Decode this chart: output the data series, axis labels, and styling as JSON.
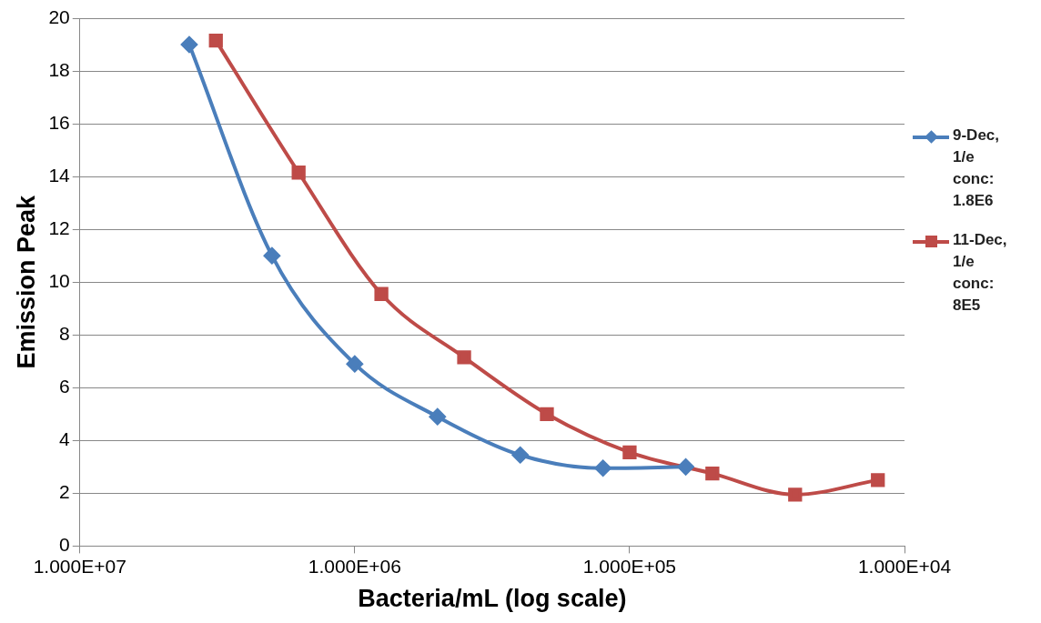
{
  "chart_data": {
    "type": "line",
    "xlabel": "Bacteria/mL (log scale)",
    "ylabel": "Emission Peak",
    "log": "x",
    "xlim": [
      10000000,
      10000
    ],
    "xticks": [
      {
        "value": 10000000,
        "label": "1.000E+07"
      },
      {
        "value": 1000000,
        "label": "1.000E+06"
      },
      {
        "value": 100000,
        "label": "1.000E+05"
      },
      {
        "value": 10000,
        "label": "1.000E+04"
      }
    ],
    "ylim": [
      0,
      20
    ],
    "yticks": [
      0,
      2,
      4,
      6,
      8,
      10,
      12,
      14,
      16,
      18,
      20
    ],
    "grid": "y",
    "legend": "right",
    "series": [
      {
        "name": "9-Dec, 1/e conc: 1.8E6",
        "color": "#4a7ebb",
        "marker": "diamond",
        "x": [
          4000000,
          2000000,
          1000000,
          500000,
          250000,
          125000,
          62500
        ],
        "values": [
          19.0,
          11.0,
          6.9,
          4.9,
          3.45,
          2.95,
          3.0
        ]
      },
      {
        "name": "11-Dec, 1/e conc: 8E5",
        "color": "#be4b48",
        "marker": "square",
        "x": [
          3200000,
          1600000,
          800000,
          400000,
          200000,
          100000,
          50000,
          25000,
          12500
        ],
        "values": [
          19.15,
          14.15,
          9.55,
          7.15,
          5.0,
          3.55,
          2.75,
          1.95,
          2.5
        ]
      }
    ]
  }
}
